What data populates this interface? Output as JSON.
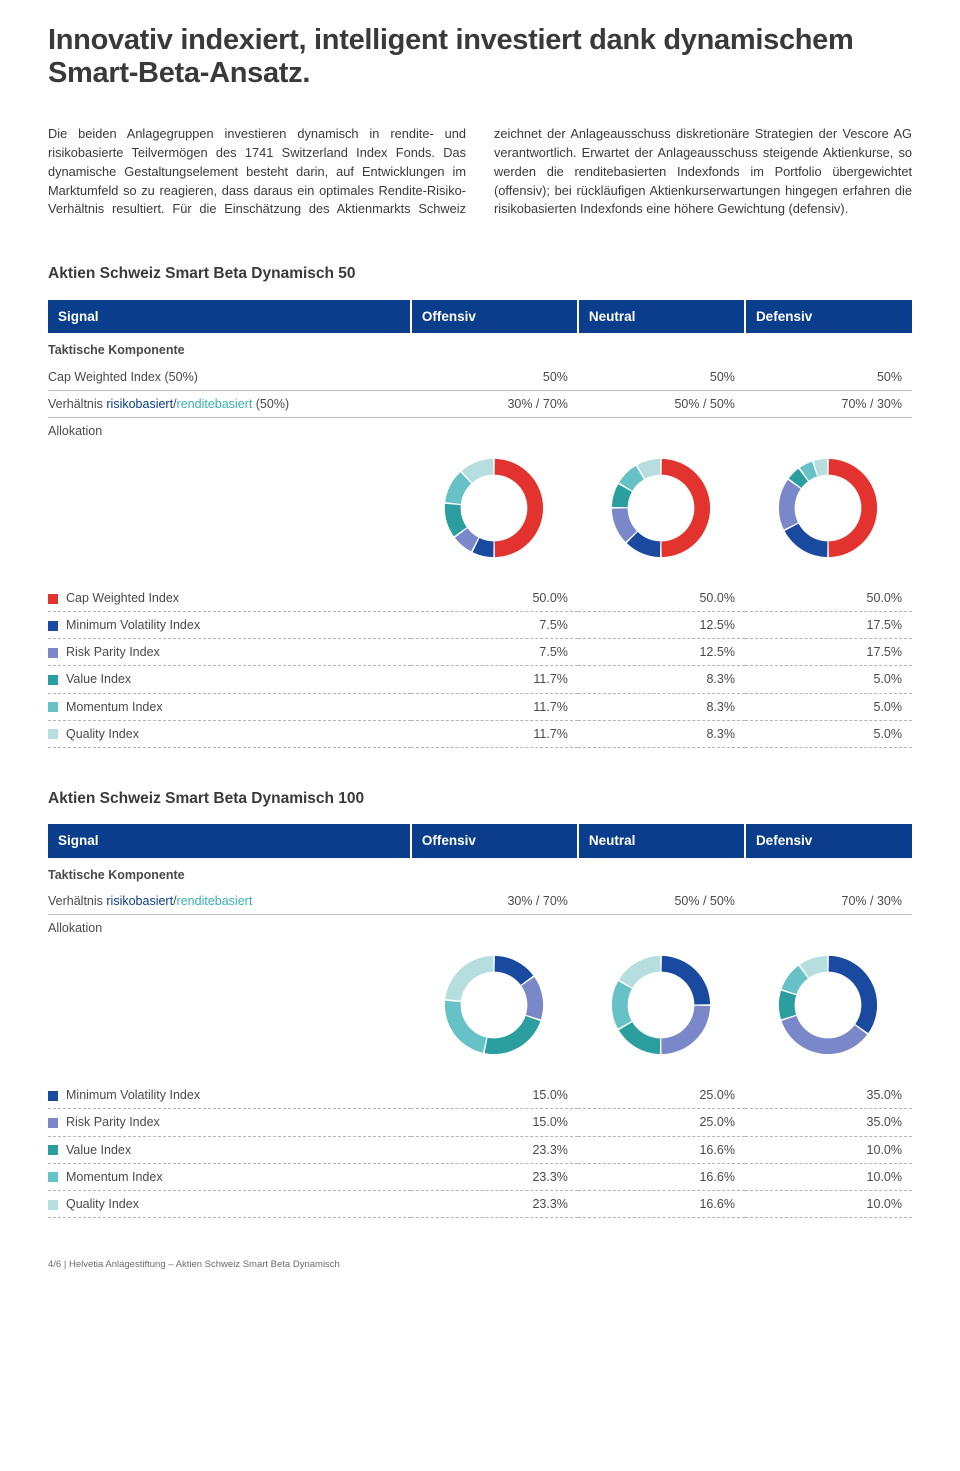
{
  "page": {
    "title": "Innovativ indexiert, intelligent investiert dank dynamischem Smart-Beta-Ansatz.",
    "intro": "Die beiden Anlagegruppen investieren dynamisch in rendite- und risikobasierte Teilvermögen des 1741 Switzerland Index Fonds. Das dynamische Gestaltungselement besteht darin, auf Entwicklungen im Marktumfeld so zu reagieren, dass daraus ein optimales Rendite-Risiko-Verhältnis resultiert. Für die Einschätzung des Aktienmarkts Schweiz zeichnet der Anlageausschuss diskretionäre Strategien der Vescore AG verantwortlich. Erwartet der Anlageausschuss steigende Aktienkurse, so werden die renditebasierten Indexfonds im Portfolio übergewichtet (offensiv); bei rückläufigen Aktienkurserwartungen hingegen erfahren die risikobasierten Indexfonds eine höhere Gewichtung (defensiv).",
    "footer": "4/6  |  Helvetia Anlagestiftung – Aktien Schweiz Smart Beta Dynamisch"
  },
  "colors": {
    "header_bg": "#0a3e8c",
    "risk_word": "#0a3e8c",
    "return_word": "#3bb0b0",
    "cap_weighted": "#e2332e",
    "min_vol": "#1a4aa0",
    "risk_parity": "#7a88c9",
    "value": "#2b9ea0",
    "momentum": "#66c2c6",
    "quality": "#b7dede"
  },
  "header": {
    "signal": "Signal",
    "offensiv": "Offensiv",
    "neutral": "Neutral",
    "defensiv": "Defensiv"
  },
  "labels": {
    "taktische": "Taktische Komponente",
    "cap_weighted_50": "Cap Weighted Index (50%)",
    "verhaltnis_pre": "Verhältnis ",
    "verhaltnis_risk": "risikobasiert",
    "verhaltnis_sep": "/",
    "verhaltnis_ret": "renditebasiert",
    "verhaltnis_suffix_50": " (50%)",
    "allokation": "Allokation"
  },
  "sections": [
    {
      "title": "Aktien Schweiz Smart Beta Dynamisch 50",
      "show_cap_row": true,
      "cap_row": {
        "offensiv": "50%",
        "neutral": "50%",
        "defensiv": "50%"
      },
      "ratio_row": {
        "offensiv": "30% / 70%",
        "neutral": "50% / 50%",
        "defensiv": "70% / 30%"
      },
      "verhaltnis_suffix": " (50%)",
      "pies": {
        "offensiv": [
          50.0,
          7.5,
          7.5,
          11.7,
          11.7,
          11.7
        ],
        "neutral": [
          50.0,
          12.5,
          12.5,
          8.3,
          8.3,
          8.3
        ],
        "defensiv": [
          50.0,
          17.5,
          17.5,
          5.0,
          5.0,
          5.0
        ]
      },
      "breakdown": [
        {
          "label": "Cap Weighted Index",
          "color_key": "cap_weighted",
          "vals": [
            "50.0%",
            "50.0%",
            "50.0%"
          ]
        },
        {
          "label": "Minimum Volatility Index",
          "color_key": "min_vol",
          "vals": [
            "7.5%",
            "12.5%",
            "17.5%"
          ]
        },
        {
          "label": "Risk Parity Index",
          "color_key": "risk_parity",
          "vals": [
            "7.5%",
            "12.5%",
            "17.5%"
          ]
        },
        {
          "label": "Value Index",
          "color_key": "value",
          "vals": [
            "11.7%",
            "8.3%",
            "5.0%"
          ]
        },
        {
          "label": "Momentum Index",
          "color_key": "momentum",
          "vals": [
            "11.7%",
            "8.3%",
            "5.0%"
          ]
        },
        {
          "label": "Quality Index",
          "color_key": "quality",
          "vals": [
            "11.7%",
            "8.3%",
            "5.0%"
          ]
        }
      ]
    },
    {
      "title": "Aktien Schweiz Smart Beta Dynamisch 100",
      "show_cap_row": false,
      "ratio_row": {
        "offensiv": "30% / 70%",
        "neutral": "50% / 50%",
        "defensiv": "70% / 30%"
      },
      "verhaltnis_suffix": "",
      "pies": {
        "offensiv": [
          15.0,
          15.0,
          23.3,
          23.3,
          23.3
        ],
        "neutral": [
          25.0,
          25.0,
          16.6,
          16.6,
          16.6
        ],
        "defensiv": [
          35.0,
          35.0,
          10.0,
          10.0,
          10.0
        ]
      },
      "pie_color_keys": [
        "min_vol",
        "risk_parity",
        "value",
        "momentum",
        "quality"
      ],
      "breakdown": [
        {
          "label": "Minimum Volatility Index",
          "color_key": "min_vol",
          "vals": [
            "15.0%",
            "25.0%",
            "35.0%"
          ]
        },
        {
          "label": "Risk Parity Index",
          "color_key": "risk_parity",
          "vals": [
            "15.0%",
            "25.0%",
            "35.0%"
          ]
        },
        {
          "label": "Value Index",
          "color_key": "value",
          "vals": [
            "23.3%",
            "16.6%",
            "10.0%"
          ]
        },
        {
          "label": "Momentum Index",
          "color_key": "momentum",
          "vals": [
            "23.3%",
            "16.6%",
            "10.0%"
          ]
        },
        {
          "label": "Quality Index",
          "color_key": "quality",
          "vals": [
            "23.3%",
            "16.6%",
            "10.0%"
          ]
        }
      ]
    }
  ],
  "donut": {
    "inner_r": 34,
    "outer_r": 50,
    "gap_deg": 2
  }
}
